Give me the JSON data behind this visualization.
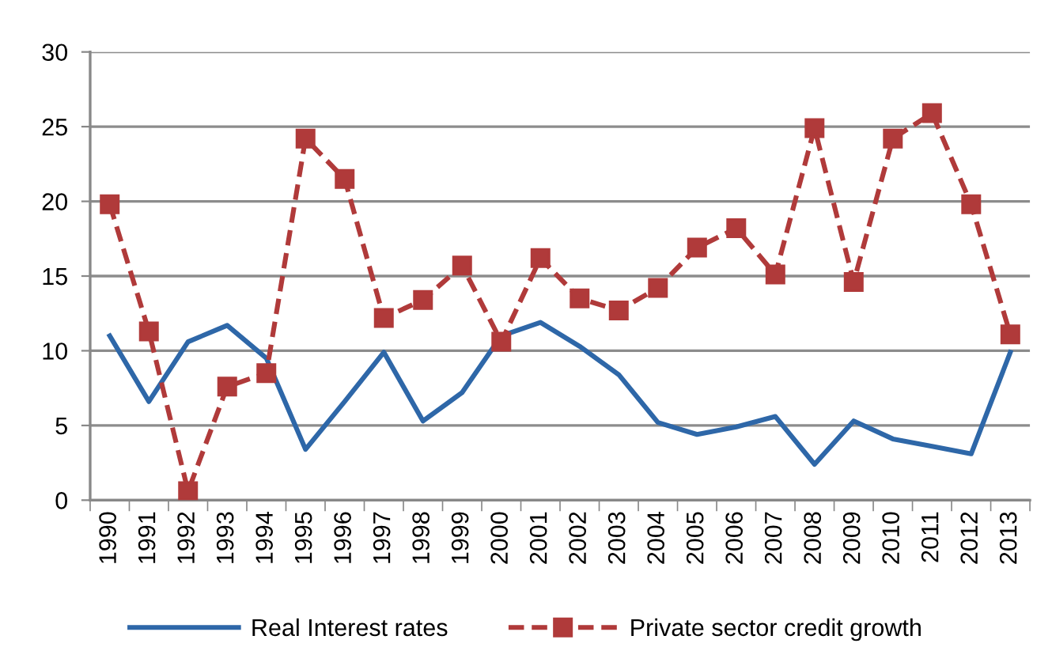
{
  "chart_data": {
    "type": "line",
    "categories": [
      "1990",
      "1991",
      "1992",
      "1993",
      "1994",
      "1995",
      "1996",
      "1997",
      "1998",
      "1999",
      "2000",
      "2001",
      "2002",
      "2003",
      "2004",
      "2005",
      "2006",
      "2007",
      "2008",
      "2009",
      "2010",
      "2011",
      "2012",
      "2013"
    ],
    "series": [
      {
        "name": "Real Interest rates",
        "color": "#2e67a8",
        "marker": "none",
        "line_style": "solid",
        "values": [
          11.0,
          6.6,
          10.6,
          11.7,
          9.5,
          3.4,
          6.6,
          9.9,
          5.3,
          7.2,
          11.0,
          11.9,
          10.3,
          8.4,
          5.2,
          4.4,
          4.9,
          5.6,
          2.4,
          5.3,
          4.1,
          3.6,
          3.1,
          9.9
        ]
      },
      {
        "name": "Private sector credit growth",
        "color": "#b03a3a",
        "marker": "square",
        "line_style": "dashed",
        "values": [
          19.8,
          11.3,
          0.6,
          7.6,
          8.5,
          24.2,
          21.5,
          12.2,
          13.4,
          15.7,
          10.6,
          16.2,
          13.5,
          12.7,
          14.2,
          16.9,
          18.2,
          15.1,
          24.9,
          14.6,
          24.2,
          25.9,
          19.8,
          11.1
        ]
      }
    ],
    "ylim": [
      0,
      30
    ],
    "yticks": [
      0,
      5,
      10,
      15,
      20,
      25,
      30
    ],
    "grid": "y",
    "legend": "bottom"
  }
}
